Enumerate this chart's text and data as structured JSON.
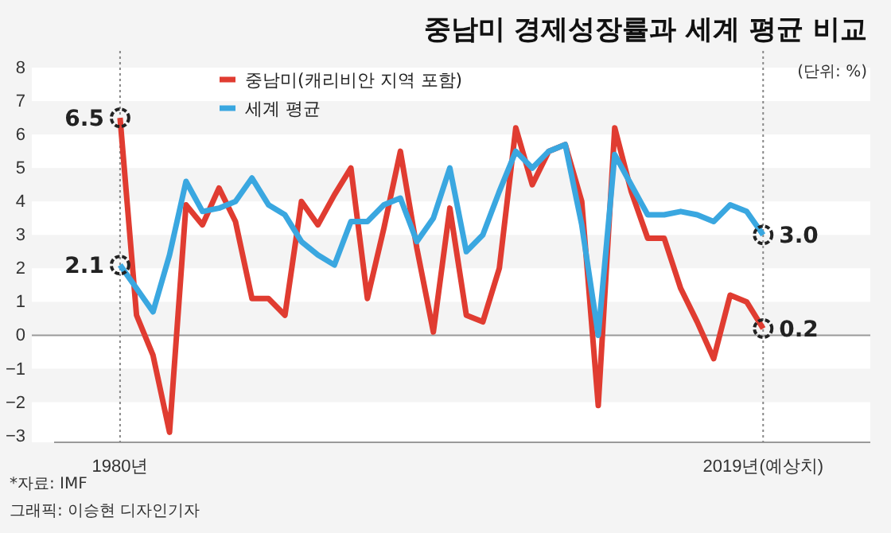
{
  "chart_data": {
    "type": "line",
    "title": "중남미 경제성장률과 세계 평균 비교",
    "subtitle": "(단위: %)",
    "x": [
      1980,
      1981,
      1982,
      1983,
      1984,
      1985,
      1986,
      1987,
      1988,
      1989,
      1990,
      1991,
      1992,
      1993,
      1994,
      1995,
      1996,
      1997,
      1998,
      1999,
      2000,
      2001,
      2002,
      2003,
      2004,
      2005,
      2006,
      2007,
      2008,
      2009,
      2010,
      2011,
      2012,
      2013,
      2014,
      2015,
      2016,
      2017,
      2018,
      2019
    ],
    "series": [
      {
        "name": "중남미(캐리비안 지역 포함)",
        "color": "#e03c31",
        "values": [
          6.5,
          0.6,
          -0.6,
          -2.9,
          3.9,
          3.3,
          4.4,
          3.4,
          1.1,
          1.1,
          0.6,
          4.0,
          3.3,
          4.2,
          5.0,
          1.1,
          3.2,
          5.5,
          2.6,
          0.1,
          3.8,
          0.6,
          0.4,
          2.0,
          6.2,
          4.5,
          5.5,
          5.7,
          4.0,
          -2.1,
          6.2,
          4.3,
          2.9,
          2.9,
          1.4,
          0.4,
          -0.7,
          1.2,
          1.0,
          0.2
        ],
        "value_labels": [
          "6.5",
          null,
          null,
          null,
          null,
          null,
          null,
          null,
          null,
          null,
          null,
          null,
          null,
          null,
          null,
          null,
          null,
          null,
          null,
          null,
          null,
          null,
          null,
          null,
          null,
          null,
          null,
          null,
          null,
          null,
          null,
          null,
          null,
          null,
          null,
          null,
          null,
          null,
          null,
          "0.2"
        ]
      },
      {
        "name": "세계 평균",
        "color": "#3aa7e0",
        "values": [
          2.1,
          1.4,
          0.7,
          2.4,
          4.6,
          3.7,
          3.8,
          4.0,
          4.7,
          3.9,
          3.6,
          2.8,
          2.4,
          2.1,
          3.4,
          3.4,
          3.9,
          4.1,
          2.8,
          3.5,
          5.0,
          2.5,
          3.0,
          4.3,
          5.5,
          5.0,
          5.5,
          5.7,
          3.3,
          0.0,
          5.4,
          4.5,
          3.6,
          3.6,
          3.7,
          3.6,
          3.4,
          3.9,
          3.7,
          3.0
        ],
        "value_labels": [
          "2.1",
          null,
          null,
          null,
          null,
          null,
          null,
          null,
          null,
          null,
          null,
          null,
          null,
          null,
          null,
          null,
          null,
          null,
          null,
          null,
          null,
          null,
          null,
          null,
          null,
          null,
          null,
          null,
          null,
          null,
          null,
          null,
          null,
          null,
          null,
          null,
          null,
          null,
          null,
          "3.0"
        ]
      }
    ],
    "xlim": [
      1976,
      2025.5
    ],
    "xticks": [
      {
        "value": 1980,
        "label": "1980년"
      },
      {
        "value": 2019,
        "label": "2019년(예상치)"
      }
    ],
    "ylim": [
      -3.2,
      8.5
    ],
    "yticks": [
      -3,
      -2,
      -1,
      0,
      1,
      2,
      3,
      4,
      5,
      6,
      7,
      8
    ],
    "legend": "top",
    "bands": [
      {
        "axis": "y",
        "from": -3.2,
        "to": -2,
        "color": "#ffffff"
      },
      {
        "axis": "y",
        "from": -1,
        "to": 0,
        "color": "#ffffff"
      },
      {
        "axis": "y",
        "from": 1,
        "to": 2,
        "color": "#ffffff"
      },
      {
        "axis": "y",
        "from": 3,
        "to": 4,
        "color": "#ffffff"
      },
      {
        "axis": "y",
        "from": 5,
        "to": 6,
        "color": "#ffffff"
      },
      {
        "axis": "y",
        "from": 7,
        "to": 8,
        "color": "#ffffff"
      }
    ],
    "marker": "none",
    "line_style": "solid",
    "ref_lines": [
      {
        "axis": "x",
        "value": 1980,
        "line_style": "dotted",
        "color": "#888888"
      },
      {
        "axis": "x",
        "value": 2019,
        "line_style": "dotted",
        "color": "#888888"
      },
      {
        "axis": "y",
        "value": 0,
        "color": "#999999"
      }
    ],
    "annotations": [
      "*자료: IMF",
      "그래픽: 이승현 디자인기자"
    ]
  }
}
